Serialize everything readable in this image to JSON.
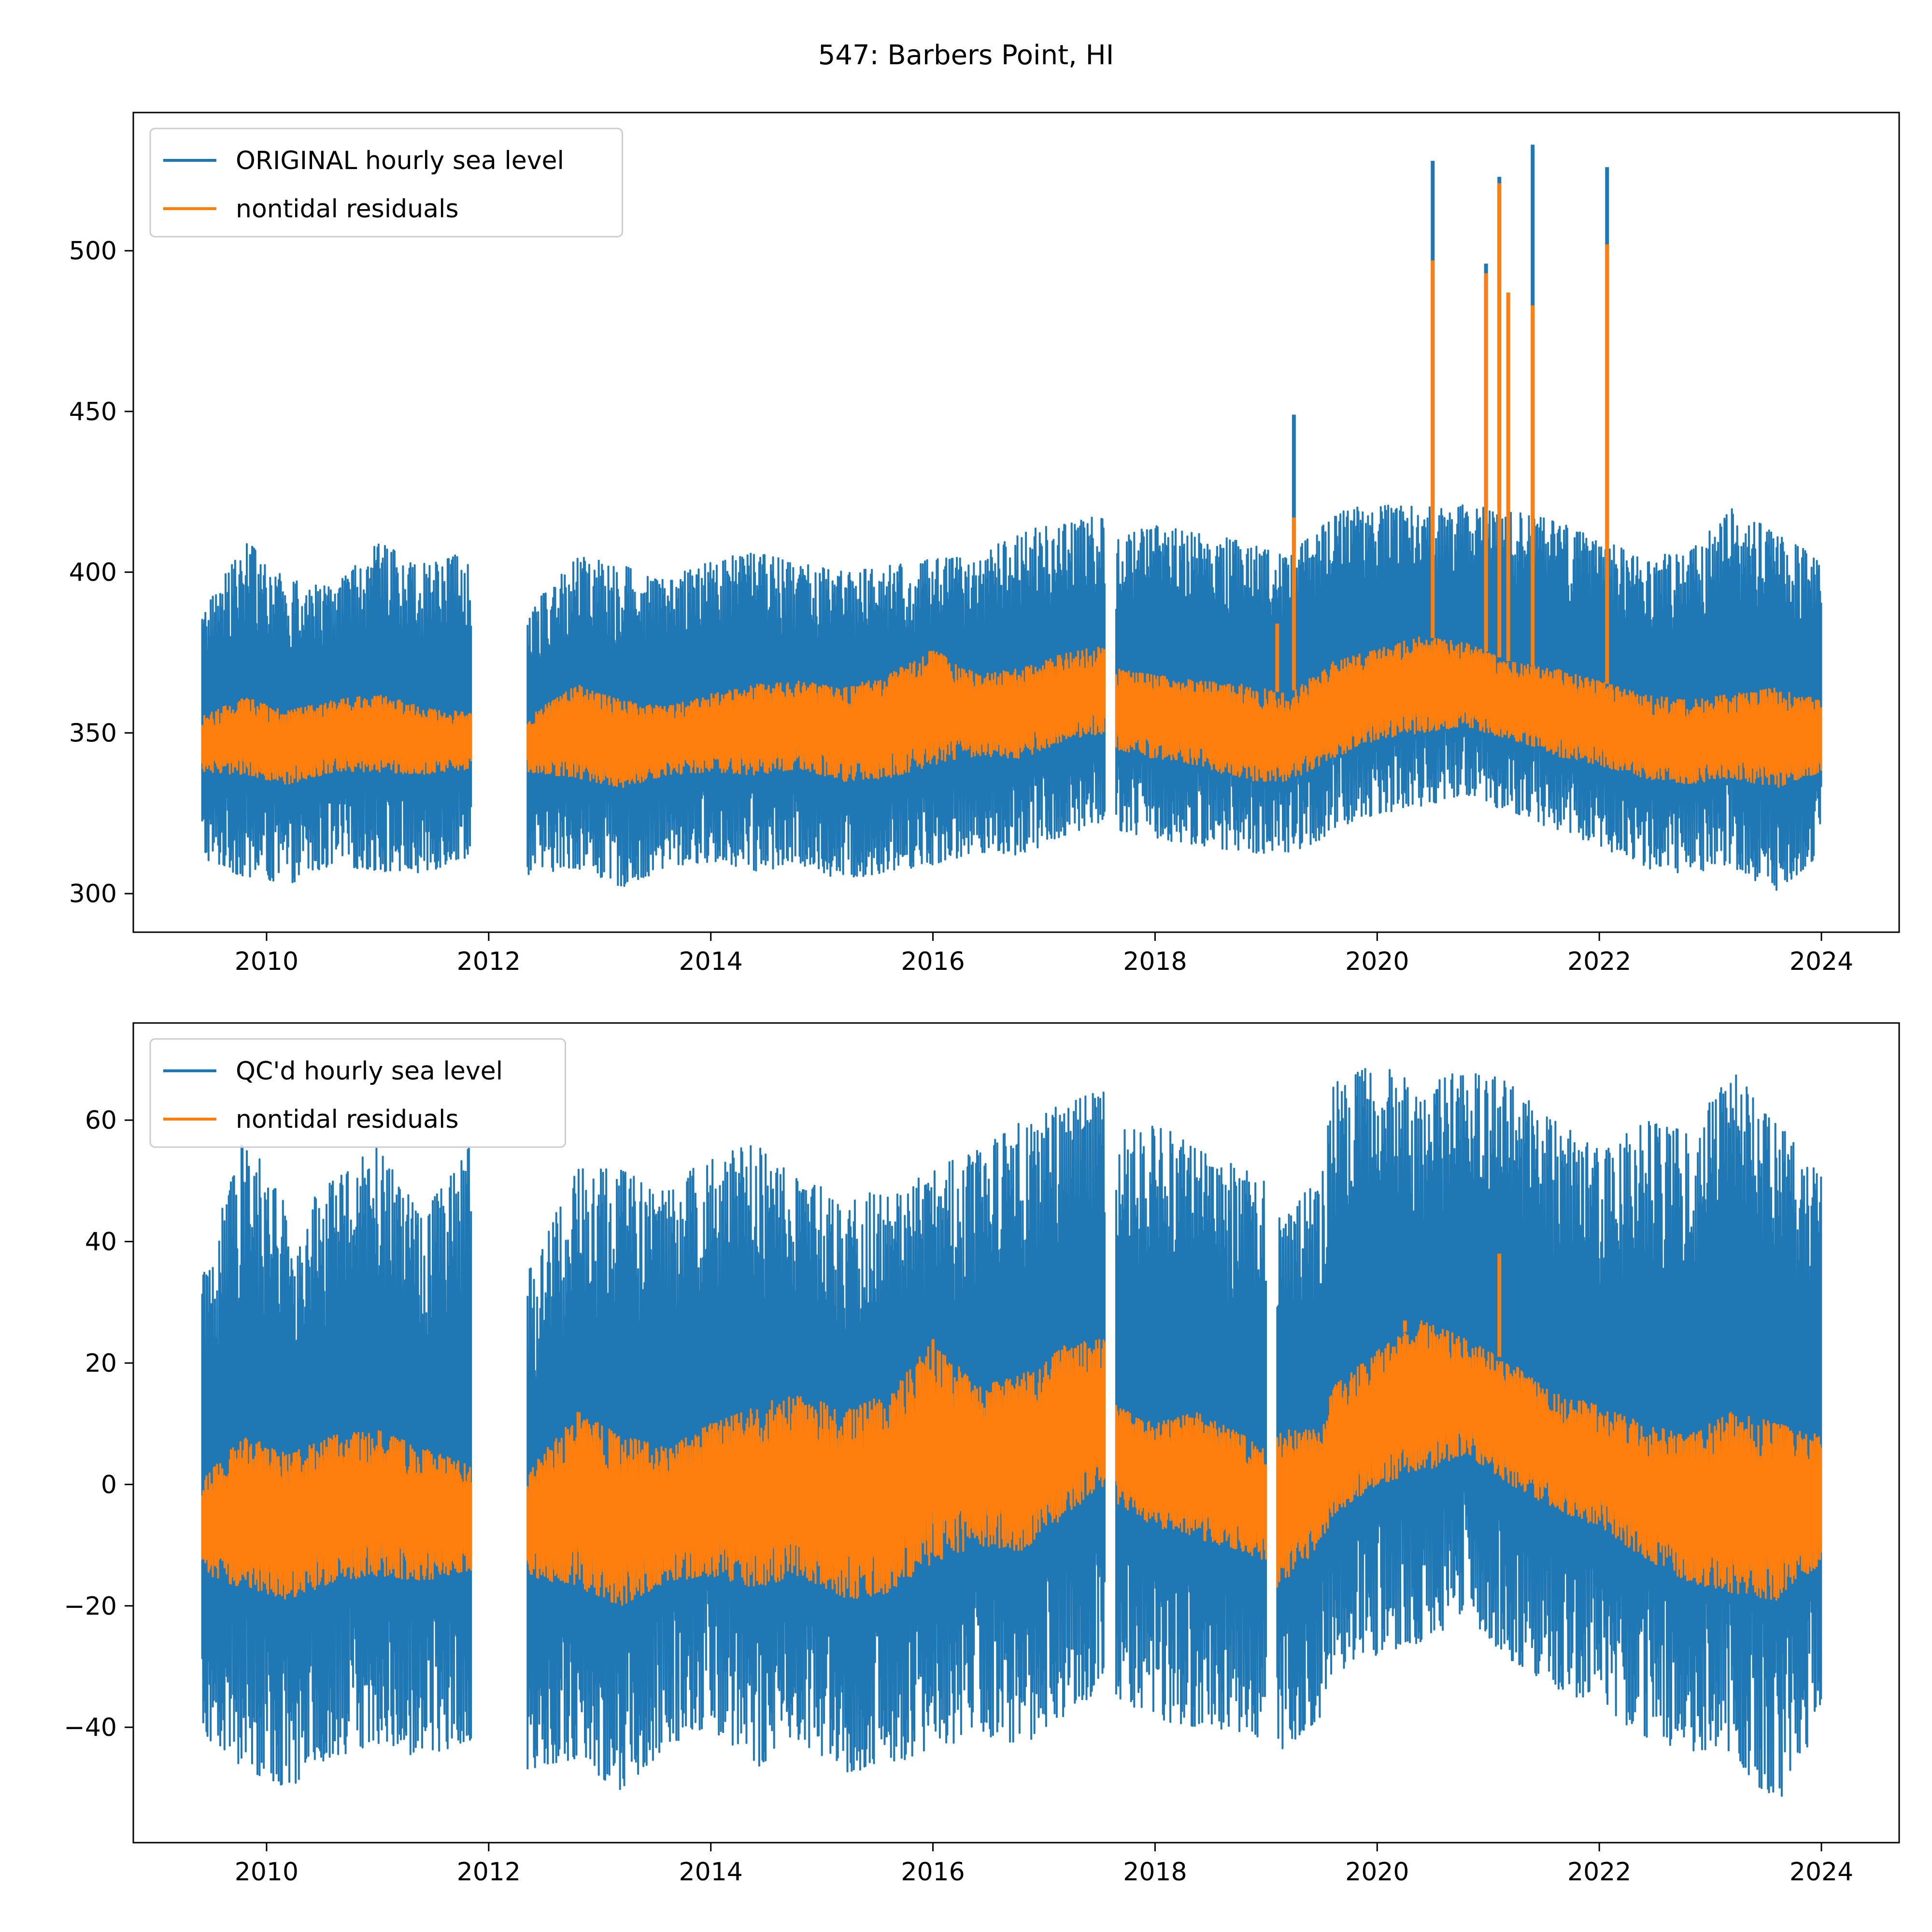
{
  "figure": {
    "title": "547: Barbers Point, HI"
  },
  "colors": {
    "series_blue": "#1f77b4",
    "series_orange": "#ff7f0e"
  },
  "chart_data": [
    {
      "type": "line",
      "panel": "top",
      "x_unit": "year",
      "xlim": [
        2008.8,
        2024.7
      ],
      "ylim": [
        288,
        543
      ],
      "x_ticks": [
        2010,
        2012,
        2014,
        2016,
        2018,
        2020,
        2022,
        2024
      ],
      "x_tick_labels": [
        "2010",
        "2012",
        "2014",
        "2016",
        "2018",
        "2020",
        "2022",
        "2024"
      ],
      "y_ticks": [
        300,
        350,
        400,
        450,
        500
      ],
      "y_tick_labels": [
        "300",
        "350",
        "400",
        "450",
        "500"
      ],
      "legend": {
        "placement": "upper-left",
        "entries": [
          "ORIGINAL hourly sea level",
          "nontidal residuals"
        ]
      },
      "data_segments": [
        [
          2009.42,
          2011.85
        ],
        [
          2012.35,
          2017.55
        ],
        [
          2017.65,
          2020.85
        ],
        [
          2020.85,
          2024.0
        ]
      ],
      "series": [
        {
          "name": "ORIGINAL hourly sea level",
          "color": "#1f77b4",
          "x": [
            2009.42,
            2009.8,
            2010.2,
            2010.6,
            2011.0,
            2011.4,
            2011.85,
            2012.35,
            2012.8,
            2013.2,
            2013.6,
            2014.0,
            2014.4,
            2014.8,
            2015.2,
            2015.6,
            2016.0,
            2016.4,
            2016.8,
            2017.2,
            2017.55,
            2017.65,
            2018.0,
            2018.4,
            2018.8,
            2019.2,
            2019.6,
            2020.0,
            2020.4,
            2020.8,
            2021.2,
            2021.6,
            2022.0,
            2022.4,
            2022.8,
            2023.2,
            2023.6,
            2024.0
          ],
          "upper": [
            387,
            410,
            398,
            395,
            409,
            404,
            407,
            388,
            405,
            402,
            398,
            404,
            406,
            403,
            400,
            402,
            404,
            405,
            413,
            415,
            418,
            410,
            415,
            412,
            410,
            405,
            418,
            422,
            420,
            421,
            419,
            416,
            410,
            405,
            406,
            420,
            412,
            404
          ],
          "lower": [
            311,
            305,
            303,
            309,
            307,
            306,
            312,
            306,
            308,
            302,
            308,
            310,
            307,
            309,
            304,
            307,
            309,
            313,
            312,
            318,
            323,
            320,
            317,
            315,
            313,
            312,
            318,
            325,
            327,
            331,
            325,
            320,
            315,
            308,
            306,
            307,
            300,
            313
          ],
          "spikes": [
            [
              2019.25,
              449
            ],
            [
              2020.5,
              528
            ],
            [
              2020.98,
              496
            ],
            [
              2021.1,
              523
            ],
            [
              2021.4,
              533
            ],
            [
              2022.07,
              526
            ]
          ]
        },
        {
          "name": "nontidal residuals",
          "color": "#ff7f0e",
          "x": [
            2009.42,
            2009.8,
            2010.2,
            2010.6,
            2011.0,
            2011.4,
            2011.85,
            2012.35,
            2012.8,
            2013.2,
            2013.6,
            2014.0,
            2014.4,
            2014.8,
            2015.2,
            2015.6,
            2016.0,
            2016.4,
            2016.8,
            2017.2,
            2017.55,
            2017.65,
            2018.0,
            2018.4,
            2018.8,
            2019.2,
            2019.6,
            2020.0,
            2020.4,
            2020.8,
            2021.2,
            2021.6,
            2022.0,
            2022.4,
            2022.8,
            2023.2,
            2023.6,
            2024.0
          ],
          "upper": [
            355,
            361,
            357,
            360,
            362,
            358,
            356,
            355,
            365,
            360,
            358,
            362,
            365,
            366,
            364,
            368,
            376,
            368,
            370,
            375,
            377,
            370,
            368,
            366,
            365,
            362,
            372,
            376,
            380,
            378,
            372,
            370,
            366,
            362,
            360,
            362,
            364,
            360
          ],
          "lower": [
            338,
            337,
            334,
            338,
            338,
            337,
            339,
            338,
            336,
            333,
            337,
            338,
            337,
            339,
            335,
            336,
            340,
            343,
            342,
            348,
            350,
            345,
            342,
            340,
            335,
            335,
            342,
            348,
            350,
            352,
            348,
            343,
            340,
            336,
            334,
            336,
            333,
            338
          ],
          "spikes": [
            [
              2019.1,
              384
            ],
            [
              2019.25,
              417
            ],
            [
              2020.5,
              497
            ],
            [
              2020.98,
              493
            ],
            [
              2021.1,
              521
            ],
            [
              2021.18,
              487
            ],
            [
              2021.4,
              483
            ],
            [
              2022.07,
              502
            ]
          ]
        }
      ]
    },
    {
      "type": "line",
      "panel": "bottom",
      "x_unit": "year",
      "xlim": [
        2008.8,
        2024.7
      ],
      "ylim": [
        -59,
        76
      ],
      "x_ticks": [
        2010,
        2012,
        2014,
        2016,
        2018,
        2020,
        2022,
        2024
      ],
      "x_tick_labels": [
        "2010",
        "2012",
        "2014",
        "2016",
        "2018",
        "2020",
        "2022",
        "2024"
      ],
      "y_ticks": [
        -40,
        -20,
        0,
        20,
        40,
        60
      ],
      "y_tick_labels": [
        "−40",
        "−20",
        "0",
        "20",
        "40",
        "60"
      ],
      "legend": {
        "placement": "upper-left",
        "entries": [
          "QC'd hourly sea level",
          "nontidal residuals"
        ]
      },
      "data_segments": [
        [
          2009.42,
          2011.85
        ],
        [
          2012.35,
          2017.55
        ],
        [
          2017.65,
          2019.0
        ],
        [
          2019.1,
          2019.5
        ],
        [
          2019.5,
          2024.0
        ]
      ],
      "series": [
        {
          "name": "QC'd hourly sea level",
          "color": "#1f77b4",
          "x": [
            2009.42,
            2009.8,
            2010.2,
            2010.6,
            2011.0,
            2011.4,
            2011.85,
            2012.35,
            2012.8,
            2013.2,
            2013.6,
            2014.0,
            2014.4,
            2014.8,
            2015.2,
            2015.6,
            2016.0,
            2016.4,
            2016.8,
            2017.2,
            2017.55,
            2017.65,
            2018.0,
            2018.4,
            2018.8,
            2019.0,
            2019.1,
            2019.5,
            2019.6,
            2020.0,
            2020.4,
            2020.8,
            2021.2,
            2021.6,
            2022.0,
            2022.4,
            2022.8,
            2023.2,
            2023.6,
            2024.0
          ],
          "upper": [
            34,
            58,
            45,
            50,
            56,
            44,
            57,
            35,
            52,
            52,
            48,
            55,
            56,
            50,
            48,
            48,
            52,
            55,
            60,
            63,
            65,
            58,
            60,
            55,
            52,
            50,
            45,
            50,
            66,
            70,
            65,
            69,
            66,
            60,
            55,
            60,
            58,
            68,
            60,
            51
          ],
          "lower": [
            -41,
            -47,
            -50,
            -45,
            -43,
            -45,
            -42,
            -47,
            -45,
            -51,
            -43,
            -40,
            -47,
            -42,
            -48,
            -46,
            -44,
            -41,
            -43,
            -38,
            -33,
            -35,
            -39,
            -40,
            -41,
            -43,
            -45,
            -38,
            -31,
            -28,
            -26,
            -22,
            -29,
            -34,
            -36,
            -42,
            -44,
            -45,
            -53,
            -39
          ]
        },
        {
          "name": "nontidal residuals",
          "color": "#ff7f0e",
          "x": [
            2009.42,
            2009.8,
            2010.2,
            2010.6,
            2011.0,
            2011.4,
            2011.85,
            2012.35,
            2012.8,
            2013.2,
            2013.6,
            2014.0,
            2014.4,
            2014.8,
            2015.2,
            2015.6,
            2016.0,
            2016.4,
            2016.8,
            2017.2,
            2017.55,
            2017.65,
            2018.0,
            2018.4,
            2018.8,
            2019.0,
            2019.1,
            2019.5,
            2019.6,
            2020.0,
            2020.4,
            2020.8,
            2021.2,
            2021.6,
            2022.0,
            2022.4,
            2022.8,
            2023.2,
            2023.6,
            2024.0
          ],
          "upper": [
            1,
            8,
            5,
            8,
            9,
            6,
            3,
            2,
            12,
            8,
            6,
            10,
            13,
            15,
            12,
            15,
            24,
            16,
            18,
            23,
            24,
            13,
            10,
            12,
            8,
            6,
            9,
            9,
            16,
            22,
            27,
            24,
            20,
            15,
            13,
            10,
            8,
            12,
            10,
            8
          ],
          "lower": [
            -15,
            -17,
            -19,
            -16,
            -15,
            -16,
            -14,
            -15,
            -17,
            -20,
            -16,
            -15,
            -17,
            -15,
            -19,
            -18,
            -13,
            -10,
            -11,
            -5,
            0,
            -3,
            -7,
            -9,
            -11,
            -13,
            -17,
            -10,
            -5,
            0,
            2,
            5,
            0,
            -4,
            -7,
            -12,
            -16,
            -18,
            -19,
            -13
          ],
          "spikes": [
            [
              2021.1,
              38
            ],
            [
              2020.25,
              27
            ]
          ]
        }
      ]
    }
  ]
}
